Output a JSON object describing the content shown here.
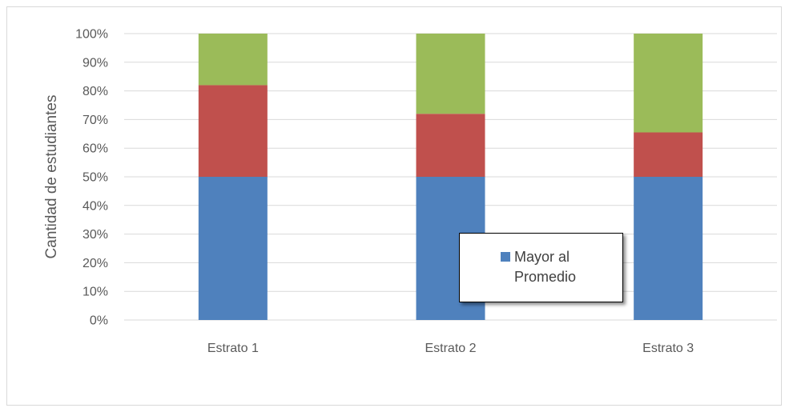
{
  "chart_data": {
    "type": "bar",
    "stacked": true,
    "percent_stacked": true,
    "categories": [
      "Estrato 1",
      "Estrato 2",
      "Estrato 3"
    ],
    "series": [
      {
        "name": "Mayor al Promedio",
        "color": "#4f81bd",
        "values": [
          50,
          50,
          50
        ]
      },
      {
        "color": "#c0504d",
        "values": [
          32,
          22,
          15.5
        ]
      },
      {
        "color": "#9bbb59",
        "values": [
          18,
          28,
          34.5
        ]
      }
    ],
    "yticks": [
      "0%",
      "10%",
      "20%",
      "30%",
      "40%",
      "50%",
      "60%",
      "70%",
      "80%",
      "90%",
      "100%"
    ],
    "ylim": [
      0,
      100
    ],
    "ylabel": "Cantidad de estudiantes",
    "grid": true,
    "legend": {
      "placement": "inside-bottom-center",
      "entries": [
        "Mayor al Promedio"
      ]
    }
  }
}
